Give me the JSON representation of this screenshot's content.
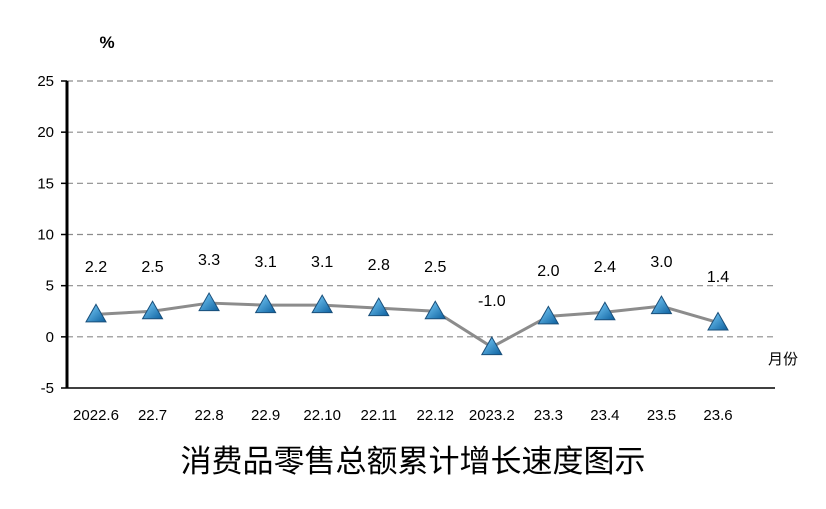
{
  "chart_data": {
    "type": "line",
    "title": "消费品零售总额累计增长速度图示",
    "ylabel": "%",
    "xlabel": "月份",
    "categories": [
      "2022.6",
      "22.7",
      "22.8",
      "22.9",
      "22.10",
      "22.11",
      "22.12",
      "2023.2",
      "23.3",
      "23.4",
      "23.5",
      "23.6"
    ],
    "series": [
      {
        "values": [
          2.2,
          2.5,
          3.3,
          3.1,
          3.1,
          2.8,
          2.5,
          -1.0,
          2.0,
          2.4,
          3.0,
          1.4
        ]
      }
    ],
    "data_labels": [
      "2.2",
      "2.5",
      "3.3",
      "3.1",
      "3.1",
      "2.8",
      "2.5",
      "-1.0",
      "2.0",
      "2.4",
      "3.0",
      "1.4"
    ],
    "ylim": [
      -5,
      25
    ],
    "yticks": [
      -5,
      0,
      5,
      10,
      15,
      20,
      25
    ],
    "ytick_labels": [
      "-5",
      "0",
      "5",
      "10",
      "15",
      "20",
      "25"
    ],
    "grid": true,
    "legend": "none",
    "colors": {
      "line": "#8c8c8c",
      "marker_fill": "#1f8fc9",
      "marker_edge": "#1a4f7a",
      "grid": "#8c8c8c",
      "axis": "#000000"
    }
  }
}
